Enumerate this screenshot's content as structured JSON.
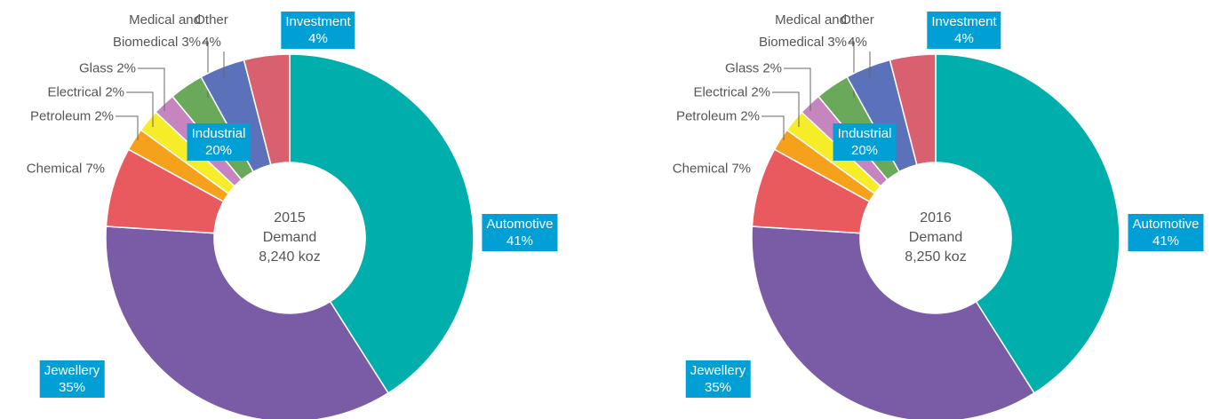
{
  "chart_data": [
    {
      "type": "pie",
      "center_text": [
        "2015",
        "Demand",
        "8,240 koz"
      ],
      "categories": [
        "Automotive",
        "Jewellery",
        "Chemical",
        "Petroleum",
        "Electrical",
        "Glass",
        "Medical and Biomedical",
        "Other",
        "Investment"
      ],
      "values": [
        41,
        35,
        7,
        2,
        2,
        2,
        3,
        4,
        4
      ],
      "value_labels": [
        "41%",
        "35%",
        "7%",
        "2%",
        "2%",
        "2%",
        "3%",
        "4%",
        "4%"
      ],
      "colors": [
        "#00aeab",
        "#7a5ba6",
        "#e85a5e",
        "#f6a11c",
        "#f6ec28",
        "#c785c0",
        "#6aa85a",
        "#5b72bb",
        "#d9616f"
      ],
      "group_label": {
        "name": "Industrial",
        "value": 20,
        "value_label": "20%"
      }
    },
    {
      "type": "pie",
      "center_text": [
        "2016",
        "Demand",
        "8,250 koz"
      ],
      "categories": [
        "Automotive",
        "Jewellery",
        "Chemical",
        "Petroleum",
        "Electrical",
        "Glass",
        "Medical and Biomedical",
        "Other",
        "Investment"
      ],
      "values": [
        41,
        35,
        7,
        2,
        2,
        2,
        3,
        4,
        4
      ],
      "value_labels": [
        "41%",
        "35%",
        "7%",
        "2%",
        "2%",
        "2%",
        "3%",
        "4%",
        "4%"
      ],
      "colors": [
        "#00aeab",
        "#7a5ba6",
        "#e85a5e",
        "#f6a11c",
        "#f6ec28",
        "#c785c0",
        "#6aa85a",
        "#5b72bb",
        "#d9616f"
      ],
      "group_label": {
        "name": "Industrial",
        "value": 20,
        "value_label": "20%"
      }
    }
  ]
}
